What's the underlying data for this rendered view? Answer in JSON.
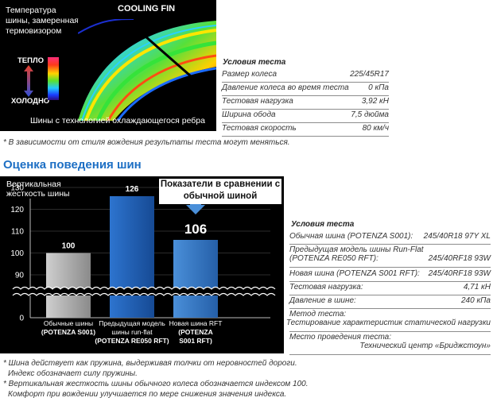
{
  "thermal": {
    "caption": "Температура шины, замеренная термовизором",
    "fin_label": "COOLING FIN",
    "warm_label": "ТЕПЛО",
    "cold_label": "ХОЛОДНО",
    "bottom_caption": "Шины с технологией охлаждающегося ребра"
  },
  "conditions1": {
    "title": "Условия теста",
    "rows": [
      {
        "label": "Размер колеса",
        "value": "225/45R17"
      },
      {
        "label": "Давление колеса во время теста",
        "value": "0 кПа"
      },
      {
        "label": "Тестовая нагрузка",
        "value": "3,92 кН"
      },
      {
        "label": "Ширина обода",
        "value": "7,5 дюйма"
      },
      {
        "label": "Тестовая скорость",
        "value": "80 км/ч"
      }
    ]
  },
  "note1": "* В зависимости от стиля вождения результаты теста могут меняться.",
  "heading": "Оценка поведения шин",
  "chart_data": {
    "type": "bar",
    "ylabel": "Вертикальная жесткость шины",
    "box_title": "Показатели в сравнении с обычной шиной",
    "yticks": [
      0,
      90,
      100,
      110,
      120,
      130
    ],
    "axis_break": true,
    "categories": [
      {
        "line1": "Обычные шины",
        "line2": "(POTENZA S001)"
      },
      {
        "line1": "Предыдущая модель",
        "line2": "шины run-flat",
        "line3": "(POTENZA RE050 RFT)"
      },
      {
        "line1": "Новая шина RFT",
        "line2": "(POTENZA",
        "line3": "S001 RFT)"
      }
    ],
    "values": [
      100,
      126,
      106
    ],
    "value_labels": [
      "100",
      "126",
      "106"
    ],
    "highlight_index": 2,
    "colors": [
      "#a9a9a9",
      "#1f5fb3",
      "#3a7cc8"
    ]
  },
  "conditions2": {
    "title": "Условия теста",
    "rows": [
      {
        "label": "Обычная шина (POTENZA S001):",
        "value": "245/40R18 97Y XL"
      },
      {
        "label": "Предыдущая модель шины Run-Flat",
        "label2": "(POTENZA RE050 RFT):",
        "value": "245/40RF18 93W"
      },
      {
        "label": "Новая шина (POTENZA S001 RFT):",
        "value": "245/40RF18 93W"
      },
      {
        "label": "Тестовая нагрузка:",
        "value": "4,71 кН"
      },
      {
        "label": "Давление в шине:",
        "value": "240 кПа"
      },
      {
        "label": "Метод теста:",
        "value": "Тестирование характеристик статической нагрузки"
      },
      {
        "label": "Место проведения теста:",
        "value": "Технический центр «Бриджстоун»"
      }
    ]
  },
  "notes2": [
    "* Шина действует как пружина, выдерживая толчки от неровностей дороги.",
    "Индекс обозначает силу пружины.",
    "* Вертикальная жесткость шины обычного колеса обозначается индексом 100.",
    "Комфорт при вождении улучшается по мере снижения значения индекса."
  ]
}
